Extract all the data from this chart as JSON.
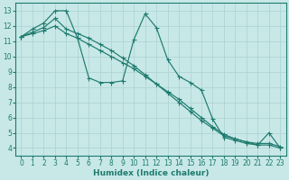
{
  "xlabel": "Humidex (Indice chaleur)",
  "background_color": "#c8e8e8",
  "grid_color": "#afd4d4",
  "line_color": "#1e7b6e",
  "xlim": [
    -0.5,
    23.5
  ],
  "ylim": [
    3.5,
    13.5
  ],
  "xticks": [
    0,
    1,
    2,
    3,
    4,
    5,
    6,
    7,
    8,
    9,
    10,
    11,
    12,
    13,
    14,
    15,
    16,
    17,
    18,
    19,
    20,
    21,
    22,
    23
  ],
  "yticks": [
    4,
    5,
    6,
    7,
    8,
    9,
    10,
    11,
    12,
    13
  ],
  "line1_x": [
    0,
    1,
    2,
    3,
    4,
    5,
    6,
    7,
    8,
    9,
    10,
    11,
    12,
    13,
    14,
    15,
    16,
    17,
    18,
    19,
    20,
    21,
    22,
    23
  ],
  "line1_y": [
    11.3,
    11.8,
    12.2,
    13.0,
    13.0,
    11.2,
    8.6,
    8.3,
    8.3,
    8.4,
    11.1,
    12.8,
    11.9,
    9.8,
    8.7,
    8.3,
    7.8,
    5.9,
    4.7,
    4.5,
    4.3,
    4.2,
    5.0,
    4.0
  ],
  "line2_x": [
    0,
    1,
    2,
    3,
    4,
    5,
    6,
    7,
    8,
    9,
    10,
    11,
    12,
    13,
    14,
    15,
    16,
    17,
    18,
    19,
    20,
    21,
    22,
    23
  ],
  "line2_y": [
    11.3,
    11.5,
    11.7,
    12.0,
    11.5,
    11.2,
    10.8,
    10.4,
    10.0,
    9.6,
    9.2,
    8.7,
    8.2,
    7.7,
    7.2,
    6.6,
    6.0,
    5.4,
    4.9,
    4.6,
    4.4,
    4.2,
    4.2,
    4.0
  ],
  "line3_x": [
    0,
    1,
    2,
    3,
    4,
    5,
    6,
    7,
    8,
    9,
    10,
    11,
    12,
    13,
    14,
    15,
    16,
    17,
    18,
    19,
    20,
    21,
    22,
    23
  ],
  "line3_y": [
    11.3,
    11.6,
    11.9,
    12.5,
    11.8,
    11.5,
    11.2,
    10.8,
    10.4,
    9.9,
    9.4,
    8.8,
    8.2,
    7.6,
    7.0,
    6.4,
    5.8,
    5.3,
    4.8,
    4.6,
    4.4,
    4.3,
    4.3,
    4.1
  ]
}
